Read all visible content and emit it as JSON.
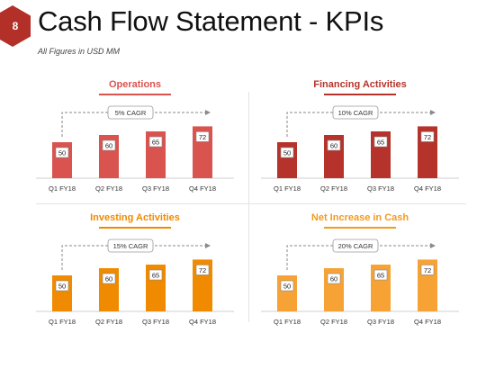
{
  "slide": {
    "number": "8",
    "title": "Cash Flow Statement - KPIs",
    "subtitle": "All Figures in USD MM"
  },
  "colors": {
    "badge": "#b23028",
    "divider": "#e3e3e3"
  },
  "chart_data": [
    {
      "type": "bar",
      "title": "Operations",
      "title_color": "#d9534f",
      "bar_color": "#d9534f",
      "annotation": "5% CAGR",
      "categories": [
        "Q1 FY18",
        "Q2 FY18",
        "Q3 FY18",
        "Q4 FY18"
      ],
      "values": [
        50,
        60,
        65,
        72
      ],
      "data_labels": [
        "50",
        "60",
        "65",
        "72"
      ],
      "ylim": [
        0,
        80
      ],
      "grid": false,
      "legend": "none"
    },
    {
      "type": "bar",
      "title": "Financing Activities",
      "title_color": "#b5332b",
      "bar_color": "#b5332b",
      "annotation": "10% CAGR",
      "categories": [
        "Q1 FY18",
        "Q2 FY18",
        "Q3 FY18",
        "Q4 FY18"
      ],
      "values": [
        50,
        60,
        65,
        72
      ],
      "data_labels": [
        "50",
        "60",
        "65",
        "72"
      ],
      "ylim": [
        0,
        80
      ],
      "grid": false,
      "legend": "none"
    },
    {
      "type": "bar",
      "title": "Investing Activities",
      "title_color": "#f08a00",
      "bar_color": "#f08a00",
      "annotation": "15% CAGR",
      "categories": [
        "Q1 FY18",
        "Q2 FY18",
        "Q3 FY18",
        "Q4 FY18"
      ],
      "values": [
        50,
        60,
        65,
        72
      ],
      "data_labels": [
        "50",
        "60",
        "65",
        "72"
      ],
      "ylim": [
        0,
        80
      ],
      "grid": false,
      "legend": "none"
    },
    {
      "type": "bar",
      "title": "Net Increase in Cash",
      "title_color": "#f39a1f",
      "bar_color": "#f7a234",
      "annotation": "20% CAGR",
      "categories": [
        "Q1 FY18",
        "Q2 FY18",
        "Q3 FY18",
        "Q4 FY18"
      ],
      "values": [
        50,
        60,
        65,
        72
      ],
      "data_labels": [
        "50",
        "60",
        "65",
        "72"
      ],
      "ylim": [
        0,
        80
      ],
      "grid": false,
      "legend": "none"
    }
  ]
}
